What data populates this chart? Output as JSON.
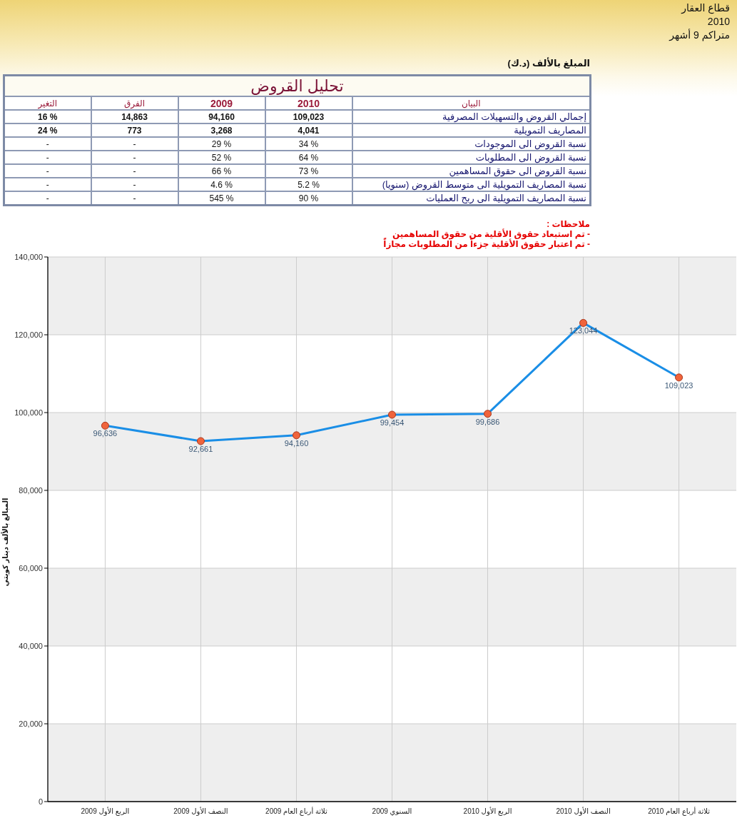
{
  "chart_data": [
    {
      "type": "other",
      "title": "تحليل القروض",
      "annotations": [
        "قطاع العقار",
        "2010",
        "متراكم 9 أشهر",
        "المبلغ بالألف (د.ك)",
        "ملاحظات :",
        "- تم استبعاد حقوق الأقلية من حقوق المساهمين",
        "- تم اعتبار حقوق الأقلية جزءاً من المطلوبات مجازاً"
      ],
      "categories": [
        "التغير",
        "الفرق",
        "2009",
        "2010",
        "البيان"
      ],
      "cell_labels": [
        [
          "16 %",
          "14,863",
          "94,160",
          "109,023",
          "إجمالي القروض والتسهيلات المصرفية"
        ],
        [
          "24 %",
          "773",
          "3,268",
          "4,041",
          "المصاريف التمويلية"
        ],
        [
          "-",
          "-",
          "29 %",
          "34 %",
          "نسبة القروض الى الموجودات"
        ],
        [
          "-",
          "-",
          "52 %",
          "64 %",
          "نسبة القروض الى المطلوبات"
        ],
        [
          "-",
          "-",
          "66 %",
          "73 %",
          "نسبة القروض الى حقوق المساهمين"
        ],
        [
          "-",
          "-",
          "4.6 %",
          "5.2 %",
          "نسبة المصاريف التمويلية الى متوسط القروض (سنويا)"
        ],
        [
          "-",
          "-",
          "545 %",
          "90 %",
          "نسبة المصاريف التمويلية الى ربح العمليات"
        ]
      ]
    },
    {
      "type": "line",
      "ylabel": "المبالغ بالألف دينار كويتي",
      "categories": [
        "الربع الأول 2009",
        "النصف الأول 2009",
        "ثلاثة أرباع العام 2009",
        "السنوي 2009",
        "الربع الأول 2010",
        "النصف الأول 2010",
        "ثلاثة أرباع العام 2010"
      ],
      "values": [
        96636,
        92661,
        94160,
        99454,
        99686,
        123044,
        109023
      ],
      "value_labels": [
        "96,636",
        "92,661",
        "94,160",
        "99,454",
        "99,686",
        "123,044",
        "109,023"
      ],
      "color": "#1a8ee6",
      "colors": [
        "#f0643c",
        "#f0643c",
        "#f0643c",
        "#f0643c",
        "#f0643c",
        "#f0643c",
        "#f0643c"
      ],
      "ylim": [
        0,
        140000
      ],
      "yticks": [
        0,
        {
          "value": 20000,
          "label": "20,000"
        },
        {
          "value": 40000,
          "label": "40,000"
        },
        {
          "value": 60000,
          "label": "60,000"
        },
        {
          "value": 80000,
          "label": "80,000"
        },
        {
          "value": 100000,
          "label": "100,000"
        },
        {
          "value": 120000,
          "label": "120,000"
        },
        {
          "value": 140000,
          "label": "140,000"
        }
      ],
      "grid": true,
      "marker": "circle"
    }
  ]
}
